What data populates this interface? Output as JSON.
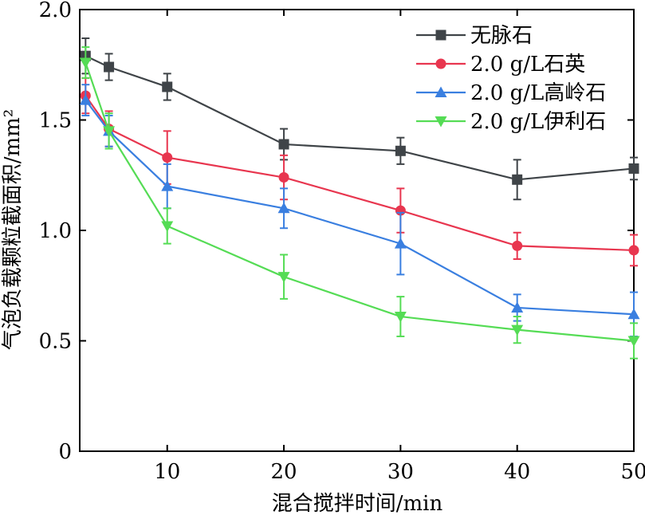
{
  "chart_data": {
    "type": "line",
    "xlabel": "混合搅拌时间/min",
    "ylabel": "气泡负载颗粒截面积/mm²",
    "xlim": [
      2.5,
      50
    ],
    "ylim": [
      0,
      2.0
    ],
    "x_ticks": [
      10,
      20,
      30,
      40,
      50
    ],
    "y_ticks": [
      0,
      0.5,
      1.0,
      1.5,
      2.0
    ],
    "x_tick_labels": [
      "10",
      "20",
      "30",
      "40",
      "50"
    ],
    "y_tick_labels": [
      "0",
      "0.5",
      "1.0",
      "1.5",
      "2.0"
    ],
    "grid": false,
    "legend_position": "top-right",
    "x": [
      3,
      5,
      10,
      20,
      30,
      40,
      50
    ],
    "series": [
      {
        "name": "无脉石",
        "color": "#3f4448",
        "marker": "square",
        "values": [
          1.79,
          1.74,
          1.65,
          1.39,
          1.36,
          1.23,
          1.28
        ],
        "errors": [
          0.08,
          0.06,
          0.06,
          0.07,
          0.06,
          0.09,
          0.05
        ]
      },
      {
        "name": "2.0 g/L石英",
        "color": "#e8364f",
        "marker": "circle",
        "values": [
          1.61,
          1.46,
          1.33,
          1.24,
          1.09,
          0.93,
          0.91
        ],
        "errors": [
          0.08,
          0.08,
          0.12,
          0.1,
          0.1,
          0.06,
          0.07
        ]
      },
      {
        "name": "2.0 g/L高岭石",
        "color": "#3a7fe0",
        "marker": "triangle-up",
        "values": [
          1.59,
          1.45,
          1.2,
          1.1,
          0.94,
          0.65,
          0.62
        ],
        "errors": [
          0.07,
          0.07,
          0.1,
          0.09,
          0.14,
          0.06,
          0.1
        ]
      },
      {
        "name": "2.0 g/L伊利石",
        "color": "#55dc55",
        "marker": "triangle-down",
        "values": [
          1.76,
          1.45,
          1.02,
          0.79,
          0.61,
          0.55,
          0.5
        ],
        "errors": [
          0.07,
          0.08,
          0.08,
          0.1,
          0.09,
          0.06,
          0.08
        ]
      }
    ]
  }
}
